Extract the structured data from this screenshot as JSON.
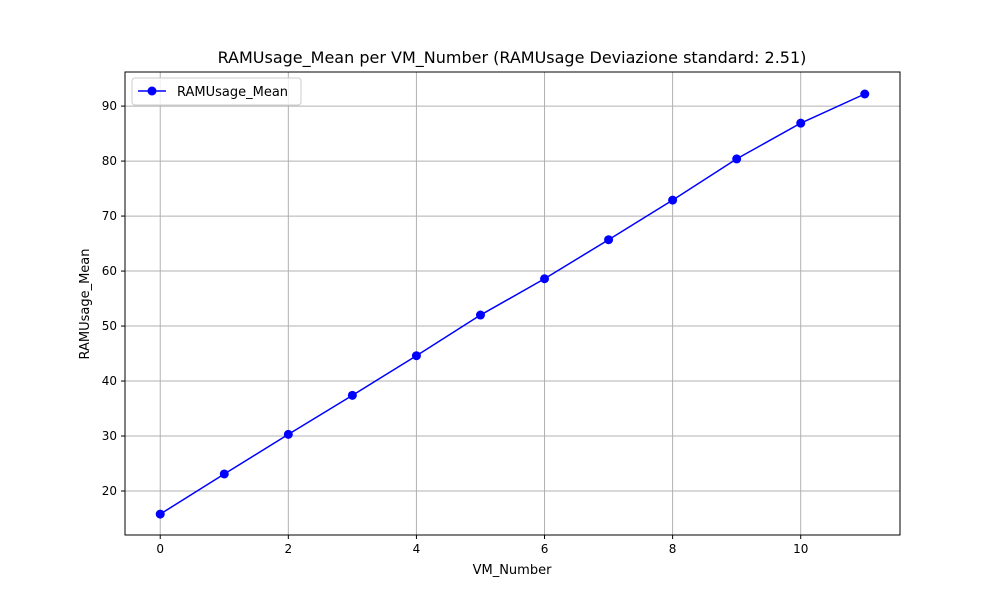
{
  "chart_data": {
    "type": "line",
    "title": "RAMUsage_Mean per VM_Number (RAMUsage Deviazione standard: 2.51)",
    "xlabel": "VM_Number",
    "ylabel": "RAMUsage_Mean",
    "xlim": [
      -0.55,
      11.55
    ],
    "ylim": [
      12.0,
      96.2
    ],
    "x_ticks": [
      0,
      2,
      4,
      6,
      8,
      10
    ],
    "y_ticks": [
      20,
      30,
      40,
      50,
      60,
      70,
      80,
      90
    ],
    "grid": true,
    "legend_position": "top-left",
    "series": [
      {
        "name": "RAMUsage_Mean",
        "color": "#0000ff",
        "marker": "circle",
        "x": [
          0,
          1,
          2,
          3,
          4,
          5,
          6,
          7,
          8,
          9,
          10,
          11
        ],
        "y": [
          15.8,
          23.1,
          30.3,
          37.4,
          44.6,
          52.0,
          58.6,
          65.7,
          72.9,
          80.4,
          86.9,
          92.2
        ]
      }
    ]
  }
}
